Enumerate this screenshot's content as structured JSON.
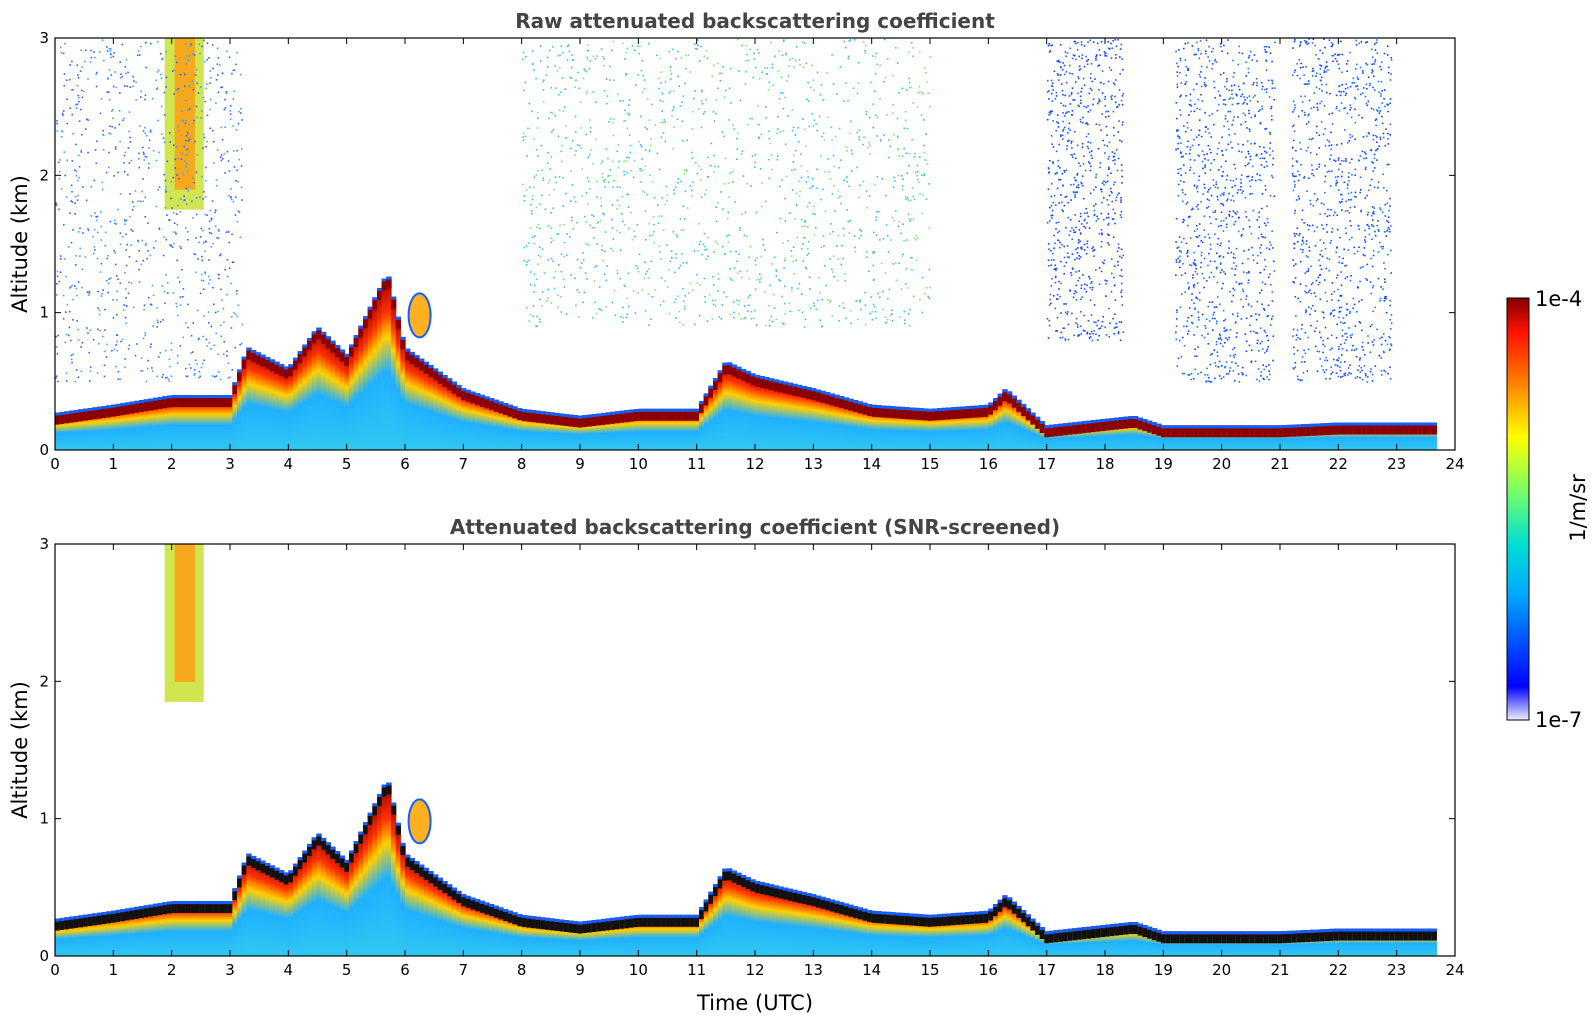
{
  "chart_data": [
    {
      "type": "heatmap",
      "title": "Raw attenuated backscattering coefficient",
      "xlabel": "",
      "ylabel": "Altitude (km)",
      "xlim": [
        0,
        24
      ],
      "ylim": [
        0,
        3
      ],
      "x_ticks": [
        "0",
        "1",
        "2",
        "3",
        "4",
        "5",
        "6",
        "7",
        "8",
        "9",
        "10",
        "11",
        "12",
        "13",
        "14",
        "15",
        "16",
        "17",
        "18",
        "19",
        "20",
        "21",
        "22",
        "23",
        "24"
      ],
      "y_ticks": [
        "0",
        "1",
        "2",
        "3"
      ],
      "colorbar": {
        "min_label": "1e-7",
        "max_label": "1e-4",
        "label": "1/m/sr",
        "scale": "log"
      },
      "boundary_layer_top_km": [
        {
          "t": 0,
          "z": 0.27
        },
        {
          "t": 1,
          "z": 0.33
        },
        {
          "t": 2,
          "z": 0.4
        },
        {
          "t": 3,
          "z": 0.4
        },
        {
          "t": 3.3,
          "z": 0.75
        },
        {
          "t": 4,
          "z": 0.6
        },
        {
          "t": 4.5,
          "z": 0.9
        },
        {
          "t": 5,
          "z": 0.7
        },
        {
          "t": 5.7,
          "z": 1.3
        },
        {
          "t": 6,
          "z": 0.75
        },
        {
          "t": 7,
          "z": 0.45
        },
        {
          "t": 8,
          "z": 0.3
        },
        {
          "t": 9,
          "z": 0.25
        },
        {
          "t": 10,
          "z": 0.3
        },
        {
          "t": 11,
          "z": 0.3
        },
        {
          "t": 11.5,
          "z": 0.65
        },
        {
          "t": 12,
          "z": 0.55
        },
        {
          "t": 13,
          "z": 0.45
        },
        {
          "t": 14,
          "z": 0.33
        },
        {
          "t": 15,
          "z": 0.3
        },
        {
          "t": 16,
          "z": 0.33
        },
        {
          "t": 16.3,
          "z": 0.45
        },
        {
          "t": 17,
          "z": 0.18
        },
        {
          "t": 18.5,
          "z": 0.25
        },
        {
          "t": 19,
          "z": 0.18
        },
        {
          "t": 21,
          "z": 0.18
        },
        {
          "t": 22,
          "z": 0.2
        },
        {
          "t": 23.6,
          "z": 0.2
        }
      ]
    },
    {
      "type": "heatmap",
      "title": "Attenuated backscattering coefficient (SNR-screened)",
      "xlabel": "Time (UTC)",
      "ylabel": "Altitude (km)",
      "xlim": [
        0,
        24
      ],
      "ylim": [
        0,
        3
      ],
      "x_ticks": [
        "0",
        "1",
        "2",
        "3",
        "4",
        "5",
        "6",
        "7",
        "8",
        "9",
        "10",
        "11",
        "12",
        "13",
        "14",
        "15",
        "16",
        "17",
        "18",
        "19",
        "20",
        "21",
        "22",
        "23",
        "24"
      ],
      "y_ticks": [
        "0",
        "1",
        "2",
        "3"
      ],
      "colorbar": {
        "min_label": "1e-7",
        "max_label": "1e-4",
        "label": "1/m/sr",
        "scale": "log"
      }
    }
  ]
}
